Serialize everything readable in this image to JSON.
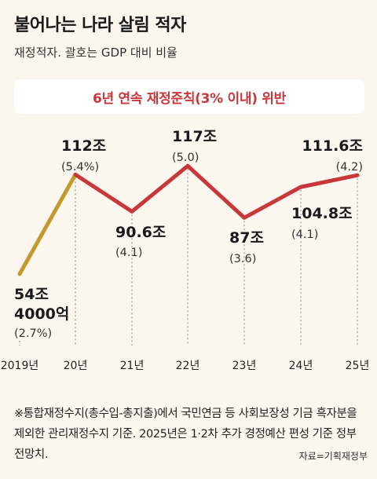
{
  "title": "불어나는 나라 살림 적자",
  "subtitle": "재정적자. 괄호는 GDP 대비 비율",
  "banner": "6년 연속 재정준칙(3% 이내) 위반",
  "note": "※통합재정수지(총수입-총지출)에서 국민연금 등 사회보장성 기금 흑자분을 제외한 관리재정수지 기준. 2025년은 1·2차 추가 경정예산 편성 기준 정부 전망치.",
  "source": "자료=기획재정부",
  "colors": {
    "highlight_segment": "#c49a2e",
    "main_line": "#c8373a",
    "banner_text": "#c8373a",
    "background": "#fbf6ee"
  },
  "chart_data": {
    "type": "line",
    "categories": [
      "2019년",
      "20년",
      "21년",
      "22년",
      "23년",
      "24년",
      "25년"
    ],
    "values": [
      54.4,
      112,
      90.6,
      117,
      87,
      104.8,
      111.6
    ],
    "gdp_ratio": [
      2.7,
      5.4,
      4.1,
      5.0,
      3.6,
      4.1,
      4.2
    ],
    "value_labels": [
      "54조 4000억",
      "112조",
      "90.6조",
      "117조",
      "87조",
      "104.8조",
      "111.6조"
    ],
    "ratio_labels": [
      "(2.7%)",
      "(5.4%)",
      "(4.1)",
      "(5.0)",
      "(3.6)",
      "(4.1)",
      "(4.2)"
    ],
    "unit": "조",
    "grid": false
  }
}
